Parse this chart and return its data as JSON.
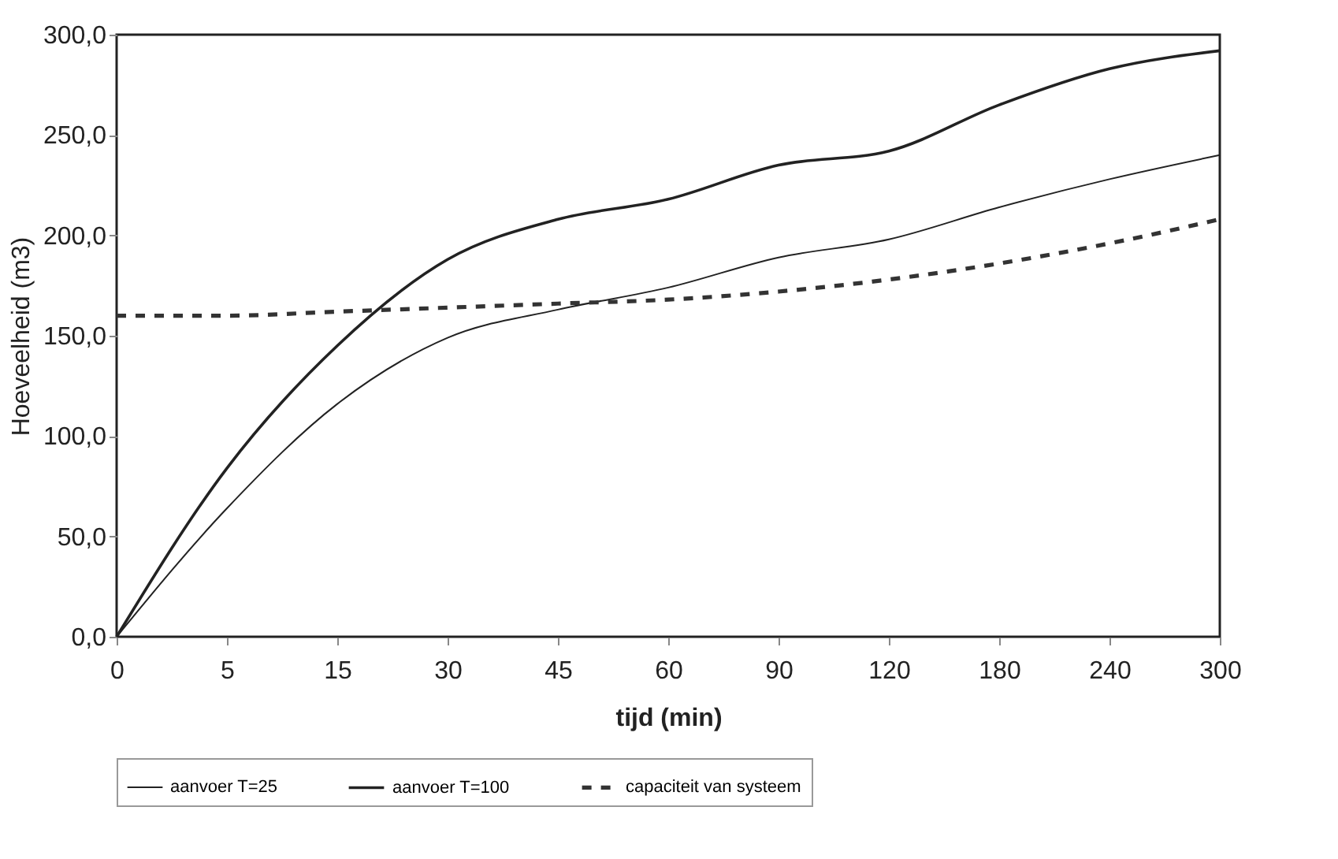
{
  "chart_data": {
    "type": "line",
    "xlabel": "tijd (min)",
    "ylabel": "Hoeveelheid (m3)",
    "categories": [
      "0",
      "5",
      "15",
      "30",
      "45",
      "60",
      "90",
      "120",
      "180",
      "240",
      "300"
    ],
    "series": [
      {
        "name": "aanvoer T=25",
        "color": "#222222",
        "line_style": "solid",
        "values": [
          0,
          64,
          116,
          149,
          163,
          174,
          189,
          198,
          214,
          228,
          240
        ]
      },
      {
        "name": "aanvoer T=100",
        "color": "#222222",
        "line_style": "solid",
        "values": [
          0,
          84,
          145,
          188,
          208,
          218,
          235,
          242,
          265,
          283,
          292
        ]
      },
      {
        "name": "capaciteit van systeem",
        "color": "#333333",
        "line_style": "dashed",
        "values": [
          160,
          160,
          162,
          164,
          166,
          168,
          172,
          178,
          186,
          196,
          208
        ]
      }
    ],
    "ylim": [
      0,
      300
    ],
    "yticks": [
      {
        "value": 0,
        "label": "0,0"
      },
      {
        "value": 50,
        "label": "50,0"
      },
      {
        "value": 100,
        "label": "100,0"
      },
      {
        "value": 150,
        "label": "150,0"
      },
      {
        "value": 200,
        "label": "200,0"
      },
      {
        "value": 250,
        "label": "250,0"
      },
      {
        "value": 300,
        "label": "300,0"
      }
    ],
    "grid": false,
    "legend": "bottom"
  }
}
